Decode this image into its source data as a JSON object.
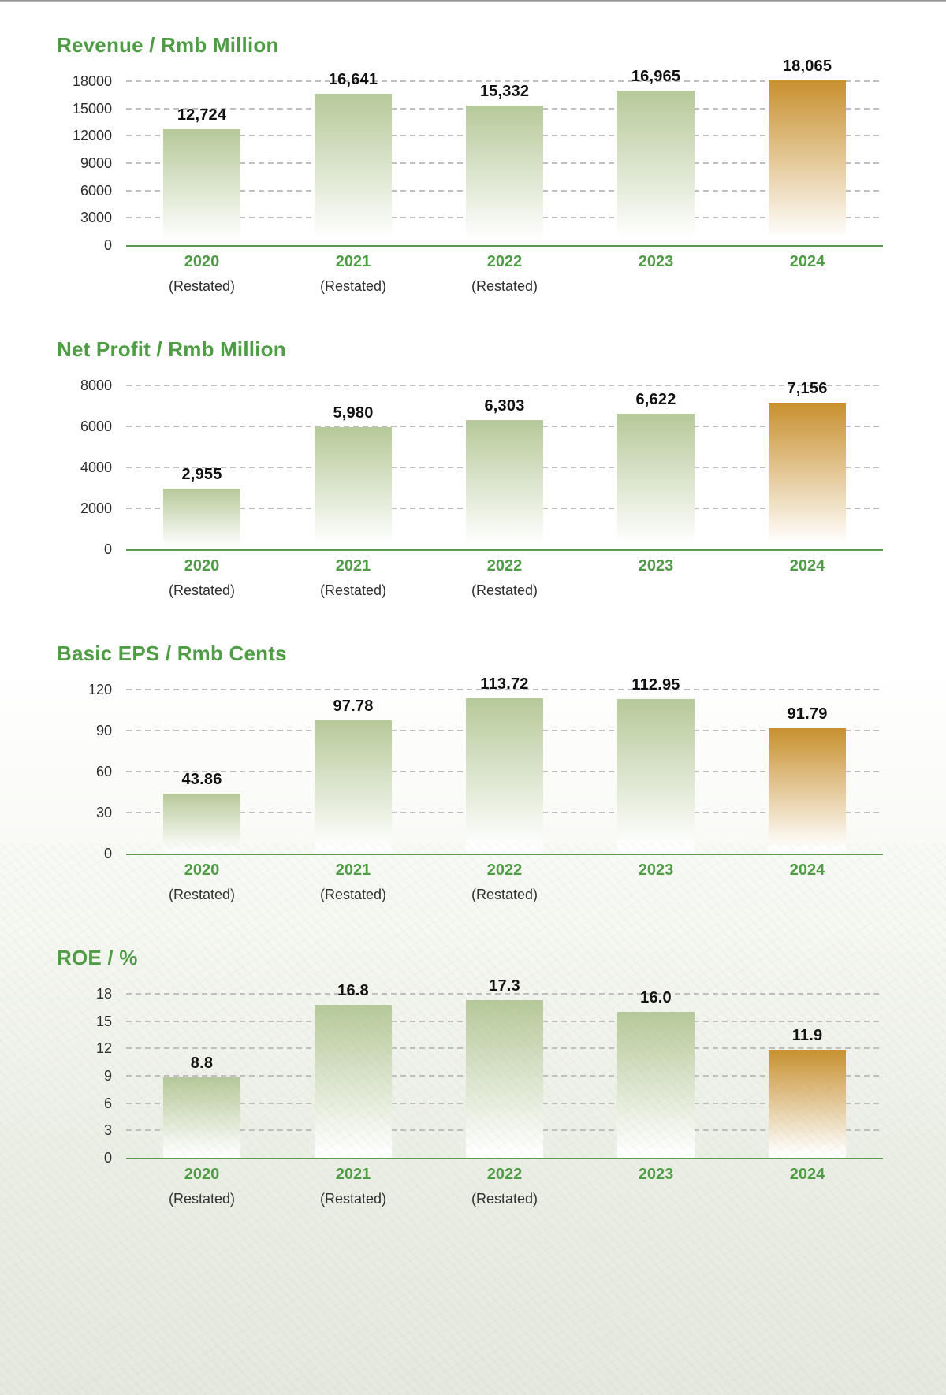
{
  "style": {
    "accent_green": "#4e9c44",
    "axis_line_green": "#5c9b4c",
    "gridline_gray": "#bfbfbf",
    "bar_green_top": "#b6c999",
    "bar_orange_top": "#c8902e",
    "bar_fade_bottom": "#ffffff",
    "value_label_color": "#101010",
    "tick_label_color": "#2b2b2b",
    "page_bg_top": "#ffffff",
    "page_bg_bottom": "#e6e9de"
  },
  "chart_data": [
    {
      "type": "bar",
      "title": "Revenue / Rmb Million",
      "categories": [
        "2020",
        "2021",
        "2022",
        "2023",
        "2024"
      ],
      "category_sub_labels": [
        "(Restated)",
        "(Restated)",
        "(Restated)",
        "",
        ""
      ],
      "values": [
        12724,
        16641,
        15332,
        16965,
        18065
      ],
      "value_labels": [
        "12,724",
        "16,641",
        "15,332",
        "16,965",
        "18,065"
      ],
      "yticks": [
        0,
        3000,
        6000,
        9000,
        12000,
        15000,
        18000
      ],
      "ytick_labels": [
        "0",
        "3000",
        "6000",
        "9000",
        "12000",
        "15000",
        "18000"
      ],
      "ylim": [
        0,
        18000
      ],
      "xlabel": "",
      "ylabel": "",
      "grid": "horizontal-dashed",
      "legend": "none",
      "bar_color_roles": [
        "green",
        "green",
        "green",
        "green",
        "orange"
      ]
    },
    {
      "type": "bar",
      "title": "Net Profit / Rmb Million",
      "categories": [
        "2020",
        "2021",
        "2022",
        "2023",
        "2024"
      ],
      "category_sub_labels": [
        "(Restated)",
        "(Restated)",
        "(Restated)",
        "",
        ""
      ],
      "values": [
        2955,
        5980,
        6303,
        6622,
        7156
      ],
      "value_labels": [
        "2,955",
        "5,980",
        "6,303",
        "6,622",
        "7,156"
      ],
      "yticks": [
        0,
        2000,
        4000,
        6000,
        8000
      ],
      "ytick_labels": [
        "0",
        "2000",
        "4000",
        "6000",
        "8000"
      ],
      "ylim": [
        0,
        8000
      ],
      "xlabel": "",
      "ylabel": "",
      "grid": "horizontal-dashed",
      "legend": "none",
      "bar_color_roles": [
        "green",
        "green",
        "green",
        "green",
        "orange"
      ]
    },
    {
      "type": "bar",
      "title": "Basic EPS / Rmb Cents",
      "categories": [
        "2020",
        "2021",
        "2022",
        "2023",
        "2024"
      ],
      "category_sub_labels": [
        "(Restated)",
        "(Restated)",
        "(Restated)",
        "",
        ""
      ],
      "values": [
        43.86,
        97.78,
        113.72,
        112.95,
        91.79
      ],
      "value_labels": [
        "43.86",
        "97.78",
        "113.72",
        "112.95",
        "91.79"
      ],
      "yticks": [
        0,
        30,
        60,
        90,
        120
      ],
      "ytick_labels": [
        "0",
        "30",
        "60",
        "90",
        "120"
      ],
      "ylim": [
        0,
        120
      ],
      "xlabel": "",
      "ylabel": "",
      "grid": "horizontal-dashed",
      "legend": "none",
      "bar_color_roles": [
        "green",
        "green",
        "green",
        "green",
        "orange"
      ]
    },
    {
      "type": "bar",
      "title": "ROE / %",
      "categories": [
        "2020",
        "2021",
        "2022",
        "2023",
        "2024"
      ],
      "category_sub_labels": [
        "(Restated)",
        "(Restated)",
        "(Restated)",
        "",
        ""
      ],
      "values": [
        8.8,
        16.8,
        17.3,
        16.0,
        11.9
      ],
      "value_labels": [
        "8.8",
        "16.8",
        "17.3",
        "16.0",
        "11.9"
      ],
      "yticks": [
        0,
        3,
        6,
        9,
        12,
        15,
        18
      ],
      "ytick_labels": [
        "0",
        "3",
        "6",
        "9",
        "12",
        "15",
        "18"
      ],
      "ylim": [
        0,
        18
      ],
      "xlabel": "",
      "ylabel": "",
      "grid": "horizontal-dashed",
      "legend": "none",
      "bar_color_roles": [
        "green",
        "green",
        "green",
        "green",
        "orange"
      ]
    }
  ]
}
